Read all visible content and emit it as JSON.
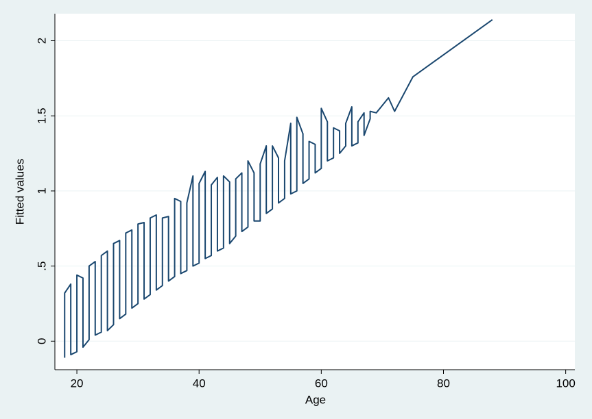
{
  "chart_data": {
    "type": "line",
    "x_label": "Age",
    "y_label": "Fitted values",
    "x": [
      18,
      18,
      19,
      19,
      20,
      20,
      21,
      21,
      22,
      22,
      23,
      23,
      24,
      24,
      25,
      25,
      26,
      26,
      27,
      27,
      28,
      28,
      29,
      29,
      30,
      30,
      31,
      31,
      32,
      32,
      33,
      33,
      34,
      34,
      35,
      35,
      36,
      36,
      37,
      37,
      38,
      38,
      39,
      39,
      40,
      40,
      41,
      41,
      42,
      42,
      43,
      43,
      44,
      44,
      45,
      45,
      46,
      46,
      47,
      47,
      48,
      48,
      49,
      49,
      50,
      50,
      51,
      51,
      52,
      52,
      53,
      53,
      54,
      54,
      55,
      55,
      56,
      56,
      57,
      57,
      58,
      58,
      59,
      59,
      60,
      60,
      61,
      61,
      62,
      62,
      63,
      63,
      64,
      64,
      65,
      65,
      66,
      66,
      67,
      67,
      68,
      68,
      69,
      70,
      71,
      72,
      75,
      88
    ],
    "values": [
      -0.11,
      0.32,
      0.38,
      -0.09,
      -0.07,
      0.44,
      0.42,
      -0.04,
      0.01,
      0.5,
      0.53,
      0.04,
      0.06,
      0.57,
      0.6,
      0.07,
      0.11,
      0.65,
      0.67,
      0.15,
      0.18,
      0.72,
      0.74,
      0.22,
      0.25,
      0.78,
      0.79,
      0.28,
      0.31,
      0.82,
      0.84,
      0.34,
      0.37,
      0.82,
      0.83,
      0.4,
      0.43,
      0.95,
      0.93,
      0.45,
      0.47,
      0.92,
      1.1,
      0.5,
      0.52,
      1.05,
      1.13,
      0.55,
      0.57,
      1.04,
      1.09,
      0.6,
      0.62,
      1.1,
      1.06,
      0.65,
      0.7,
      1.08,
      1.12,
      0.73,
      0.76,
      1.2,
      1.12,
      0.8,
      0.8,
      1.18,
      1.3,
      0.85,
      0.88,
      1.3,
      1.22,
      0.92,
      0.95,
      1.2,
      1.45,
      0.98,
      1.0,
      1.49,
      1.38,
      1.05,
      1.08,
      1.33,
      1.31,
      1.12,
      1.15,
      1.55,
      1.46,
      1.2,
      1.22,
      1.42,
      1.4,
      1.25,
      1.3,
      1.45,
      1.56,
      1.3,
      1.32,
      1.46,
      1.52,
      1.37,
      1.48,
      1.53,
      1.52,
      1.57,
      1.62,
      1.53,
      1.76,
      2.14
    ],
    "color": "#1a476f",
    "xlim": [
      16.4,
      101.5
    ],
    "xticks": [
      20,
      40,
      60,
      80,
      100
    ],
    "ylim": [
      -0.19,
      2.18
    ],
    "yticks": [
      0,
      {
        "value": 0.5,
        "label": ".5"
      },
      1,
      1.5,
      2
    ],
    "grid": true
  }
}
